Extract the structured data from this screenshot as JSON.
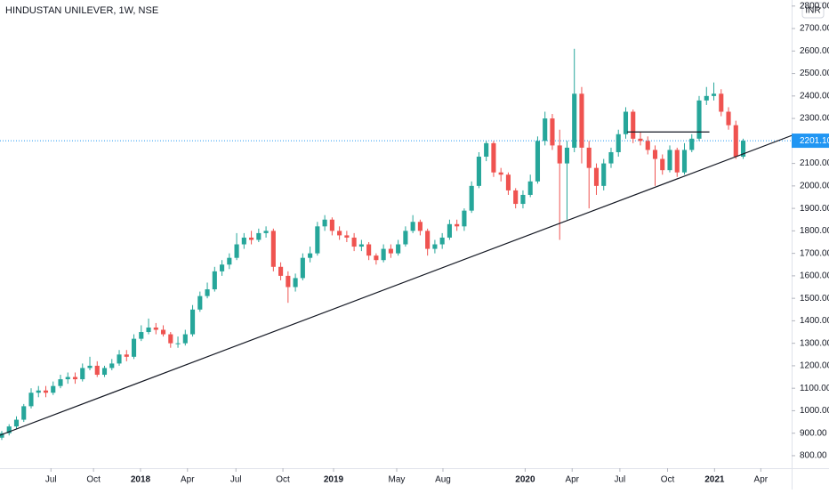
{
  "chart_data": {
    "type": "candlestick",
    "title": "HINDUSTAN UNILEVER, 1W, NSE",
    "currency": "INR",
    "up_color": "#26a69a",
    "down_color": "#ef5350",
    "grid": false,
    "open": [
      880,
      900,
      930,
      960,
      1020,
      1080,
      1090,
      1080,
      1110,
      1140,
      1150,
      1140,
      1190,
      1200,
      1160,
      1190,
      1210,
      1250,
      1240,
      1320,
      1350,
      1370,
      1360,
      1340,
      1300,
      1300,
      1340,
      1450,
      1510,
      1540,
      1620,
      1650,
      1680,
      1740,
      1770,
      1760,
      1790,
      1800,
      1640,
      1600,
      1550,
      1590,
      1680,
      1700,
      1820,
      1850,
      1800,
      1780,
      1770,
      1730,
      1740,
      1690,
      1670,
      1720,
      1700,
      1740,
      1800,
      1840,
      1800,
      1720,
      1740,
      1770,
      1830,
      1820,
      1890,
      2000,
      2130,
      2190,
      2060,
      2050,
      1980,
      1920,
      1960,
      2020,
      2200,
      2300,
      2180,
      2100,
      2170,
      2410,
      2170,
      2080,
      2000,
      2100,
      2150,
      2230,
      2330,
      2210,
      2200,
      2160,
      2120,
      2070,
      2160,
      2060,
      2160,
      2210,
      2380,
      2400,
      2410,
      2330,
      2270,
      2130
    ],
    "high": [
      910,
      940,
      975,
      1030,
      1100,
      1110,
      1110,
      1130,
      1160,
      1170,
      1170,
      1210,
      1240,
      1220,
      1200,
      1230,
      1270,
      1270,
      1340,
      1380,
      1410,
      1390,
      1380,
      1350,
      1330,
      1360,
      1470,
      1530,
      1570,
      1640,
      1670,
      1700,
      1790,
      1790,
      1800,
      1810,
      1820,
      1810,
      1660,
      1620,
      1610,
      1700,
      1730,
      1840,
      1870,
      1860,
      1820,
      1800,
      1790,
      1760,
      1750,
      1700,
      1740,
      1740,
      1760,
      1820,
      1870,
      1850,
      1810,
      1760,
      1790,
      1850,
      1850,
      1900,
      2020,
      2150,
      2200,
      2200,
      2080,
      2060,
      1990,
      1980,
      2050,
      2220,
      2330,
      2320,
      2250,
      2200,
      2610,
      2440,
      2200,
      2100,
      2120,
      2170,
      2250,
      2350,
      2340,
      2240,
      2220,
      2180,
      2140,
      2180,
      2170,
      2190,
      2230,
      2400,
      2440,
      2460,
      2430,
      2350,
      2290,
      2210
    ],
    "low": [
      870,
      890,
      920,
      950,
      1010,
      1060,
      1060,
      1070,
      1100,
      1120,
      1120,
      1130,
      1180,
      1150,
      1150,
      1180,
      1200,
      1220,
      1230,
      1310,
      1340,
      1340,
      1330,
      1280,
      1280,
      1290,
      1330,
      1440,
      1500,
      1530,
      1600,
      1630,
      1670,
      1720,
      1740,
      1750,
      1770,
      1620,
      1580,
      1480,
      1530,
      1580,
      1660,
      1690,
      1800,
      1780,
      1760,
      1750,
      1710,
      1710,
      1670,
      1650,
      1660,
      1680,
      1690,
      1730,
      1790,
      1780,
      1690,
      1700,
      1720,
      1760,
      1800,
      1800,
      1880,
      1990,
      2110,
      2040,
      2020,
      1960,
      1900,
      1900,
      1950,
      2010,
      2180,
      2160,
      1760,
      1850,
      2150,
      2100,
      1900,
      1960,
      1980,
      2080,
      2130,
      2210,
      2190,
      2180,
      2140,
      2000,
      2050,
      2060,
      2040,
      2050,
      2150,
      2200,
      2360,
      2380,
      2310,
      2250,
      2120,
      2120
    ],
    "close": [
      900,
      930,
      960,
      1020,
      1080,
      1090,
      1080,
      1110,
      1140,
      1150,
      1140,
      1190,
      1200,
      1160,
      1190,
      1210,
      1250,
      1240,
      1320,
      1350,
      1370,
      1360,
      1340,
      1300,
      1300,
      1340,
      1450,
      1510,
      1540,
      1620,
      1650,
      1680,
      1740,
      1770,
      1760,
      1790,
      1800,
      1640,
      1600,
      1550,
      1590,
      1680,
      1700,
      1820,
      1850,
      1800,
      1780,
      1770,
      1730,
      1740,
      1690,
      1670,
      1720,
      1700,
      1740,
      1800,
      1840,
      1800,
      1720,
      1740,
      1770,
      1830,
      1820,
      1890,
      2000,
      2130,
      2190,
      2060,
      2050,
      1980,
      1920,
      1960,
      2020,
      2200,
      2300,
      2180,
      2100,
      2170,
      2410,
      2170,
      2080,
      2000,
      2100,
      2150,
      2230,
      2330,
      2210,
      2200,
      2160,
      2120,
      2070,
      2160,
      2060,
      2160,
      2210,
      2380,
      2400,
      2410,
      2330,
      2270,
      2130,
      2201.1
    ],
    "xlim": [
      -0.24,
      107.6
    ],
    "xticks": [
      {
        "value": 6.7,
        "label": "Jul"
      },
      {
        "value": 12.5,
        "label": "Oct"
      },
      {
        "value": 18.9,
        "label": "2018"
      },
      {
        "value": 25.3,
        "label": "Apr"
      },
      {
        "value": 31.9,
        "label": "Jul"
      },
      {
        "value": 38.3,
        "label": "Oct"
      },
      {
        "value": 45.2,
        "label": "2019"
      },
      {
        "value": 53.8,
        "label": "May"
      },
      {
        "value": 60.1,
        "label": "Aug"
      },
      {
        "value": 71.3,
        "label": "2020"
      },
      {
        "value": 77.7,
        "label": "Apr"
      },
      {
        "value": 84.2,
        "label": "Jul"
      },
      {
        "value": 90.7,
        "label": "Oct"
      },
      {
        "value": 97.1,
        "label": "2021"
      },
      {
        "value": 103.4,
        "label": "Apr"
      }
    ],
    "ylim": [
      744.4,
      2826.9
    ],
    "yticks": [
      {
        "value": 800,
        "label": "800.00"
      },
      {
        "value": 900,
        "label": "900.00"
      },
      {
        "value": 1000,
        "label": "1000.00"
      },
      {
        "value": 1100,
        "label": "1100.00"
      },
      {
        "value": 1200,
        "label": "1200.00"
      },
      {
        "value": 1300,
        "label": "1300.00"
      },
      {
        "value": 1400,
        "label": "1400.00"
      },
      {
        "value": 1500,
        "label": "1500.00"
      },
      {
        "value": 1600,
        "label": "1600.00"
      },
      {
        "value": 1700,
        "label": "1700.00"
      },
      {
        "value": 1800,
        "label": "1800.00"
      },
      {
        "value": 1900,
        "label": "1900.00"
      },
      {
        "value": 2000,
        "label": "2000.00"
      },
      {
        "value": 2100,
        "label": "2100.00"
      },
      {
        "value": 2200,
        "label": "2200.00"
      },
      {
        "value": 2300,
        "label": "2300.00"
      },
      {
        "value": 2400,
        "label": "2400.00"
      },
      {
        "value": 2500,
        "label": "2500.00"
      },
      {
        "value": 2600,
        "label": "2600.00"
      },
      {
        "value": 2700,
        "label": "2700.00"
      },
      {
        "value": 2800,
        "label": "2800.00"
      }
    ],
    "last_price": {
      "value": 2201.1,
      "label": "2201.10",
      "color": "#2196f3"
    },
    "trendline": {
      "x": [
        -0.24,
        107.6
      ],
      "y": [
        891,
        2224
      ]
    },
    "hline": {
      "x": [
        85.2,
        96.4
      ],
      "y": [
        2240,
        2240
      ]
    }
  }
}
